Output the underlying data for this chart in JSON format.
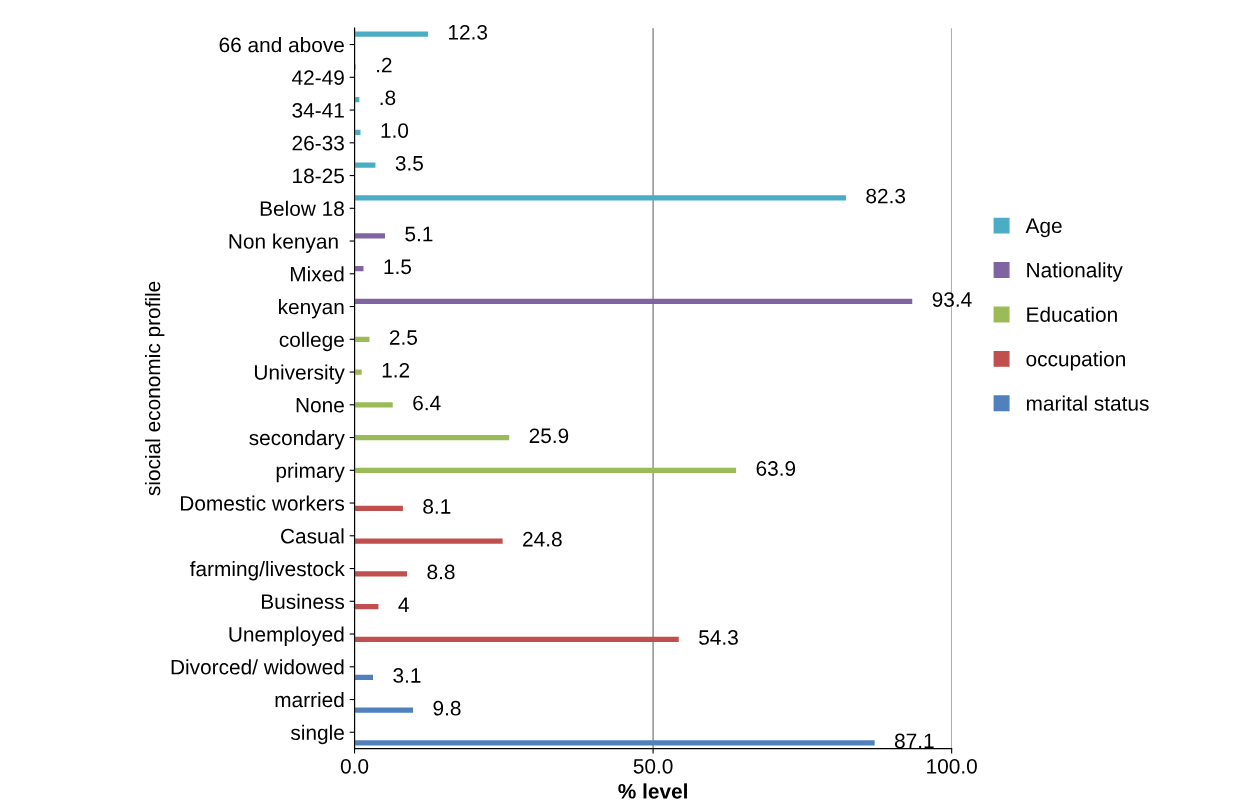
{
  "chart_data": {
    "type": "bar",
    "orientation": "horizontal",
    "xlabel": "% level",
    "ylabel": "siocial economic profile",
    "categories": [
      "66 and above",
      "42-49",
      "34-41",
      "26-33",
      "18-25",
      "Below 18",
      "Non kenyan ",
      "Mixed",
      "kenyan",
      "college",
      "University",
      "None",
      "secondary",
      "primary",
      "Domestic workers",
      "Casual",
      "farming/livestock",
      "Business",
      "Unemployed",
      "Divorced/ widowed",
      "married",
      "single"
    ],
    "series": [
      {
        "name": "Age",
        "color": "#4bacc6",
        "values": [
          12.3,
          0.2,
          0.8,
          1.0,
          3.5,
          82.3,
          null,
          null,
          null,
          null,
          null,
          null,
          null,
          null,
          null,
          null,
          null,
          null,
          null,
          null,
          null,
          null
        ],
        "value_labels": [
          "12.3",
          ".2",
          ".8",
          "1.0",
          "3.5",
          "82.3",
          null,
          null,
          null,
          null,
          null,
          null,
          null,
          null,
          null,
          null,
          null,
          null,
          null,
          null,
          null,
          null
        ]
      },
      {
        "name": "Nationality",
        "color": "#8064a2",
        "values": [
          null,
          null,
          null,
          null,
          null,
          null,
          5.1,
          1.5,
          93.4,
          null,
          null,
          null,
          null,
          null,
          null,
          null,
          null,
          null,
          null,
          null,
          null,
          null
        ],
        "value_labels": [
          null,
          null,
          null,
          null,
          null,
          null,
          "5.1",
          "1.5",
          "93.4",
          null,
          null,
          null,
          null,
          null,
          null,
          null,
          null,
          null,
          null,
          null,
          null,
          null
        ]
      },
      {
        "name": "Education",
        "color": "#9bbb59",
        "values": [
          null,
          null,
          null,
          null,
          null,
          null,
          null,
          null,
          null,
          2.5,
          1.2,
          6.4,
          25.9,
          63.9,
          null,
          null,
          null,
          null,
          null,
          null,
          null,
          null
        ],
        "value_labels": [
          null,
          null,
          null,
          null,
          null,
          null,
          null,
          null,
          null,
          "2.5",
          "1.2",
          "6.4",
          "25.9",
          "63.9",
          null,
          null,
          null,
          null,
          null,
          null,
          null,
          null
        ]
      },
      {
        "name": "occupation",
        "color": "#c0504d",
        "values": [
          null,
          null,
          null,
          null,
          null,
          null,
          null,
          null,
          null,
          null,
          null,
          null,
          null,
          null,
          8.1,
          24.8,
          8.8,
          4,
          54.3,
          null,
          null,
          null
        ],
        "value_labels": [
          null,
          null,
          null,
          null,
          null,
          null,
          null,
          null,
          null,
          null,
          null,
          null,
          null,
          null,
          "8.1",
          "24.8",
          "8.8",
          "4",
          "54.3",
          null,
          null,
          null
        ]
      },
      {
        "name": "marital status",
        "color": "#4f81bd",
        "values": [
          null,
          null,
          null,
          null,
          null,
          null,
          null,
          null,
          null,
          null,
          null,
          null,
          null,
          null,
          null,
          null,
          null,
          null,
          null,
          3.1,
          9.8,
          87.1
        ],
        "value_labels": [
          null,
          null,
          null,
          null,
          null,
          null,
          null,
          null,
          null,
          null,
          null,
          null,
          null,
          null,
          null,
          null,
          null,
          null,
          null,
          "3.1",
          "9.8",
          "87.1"
        ]
      }
    ],
    "xlim": [
      0,
      100
    ],
    "xticks": [
      {
        "value": 0,
        "label": "0.0"
      },
      {
        "value": 50,
        "label": "50.0"
      },
      {
        "value": 100,
        "label": "100.0"
      }
    ],
    "grid": "x",
    "legend": "right"
  }
}
